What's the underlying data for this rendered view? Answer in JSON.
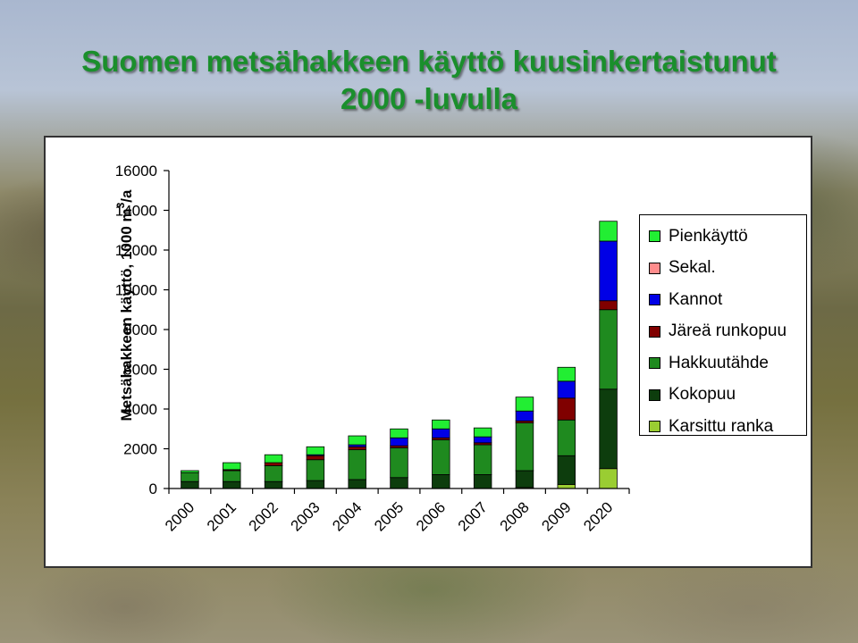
{
  "slide": {
    "title_line1": "Suomen metsähakkeen käyttö kuusinkertaistunut",
    "title_line2": "2000 -luvulla"
  },
  "chart_data": {
    "type": "bar",
    "stacked": true,
    "ylabel_main": "Metsähakkeen käyttö, 1000 m",
    "ylabel_sup": "3",
    "ylabel_suffix": "/a",
    "ylim": [
      0,
      16000
    ],
    "yticks": [
      0,
      2000,
      4000,
      6000,
      8000,
      10000,
      12000,
      14000,
      16000
    ],
    "categories": [
      "2000",
      "2001",
      "2002",
      "2003",
      "2004",
      "2005",
      "2006",
      "2007",
      "2008",
      "2009",
      "2020"
    ],
    "grid": false,
    "legend_placement": "right",
    "series": [
      {
        "name": "Karsittu ranka",
        "color": "#9acd32",
        "values": [
          0,
          0,
          0,
          0,
          0,
          0,
          0,
          0,
          50,
          200,
          1000
        ]
      },
      {
        "name": "Kokopuu",
        "color": "#0d3d0d",
        "values": [
          350,
          350,
          350,
          400,
          450,
          550,
          700,
          700,
          850,
          1450,
          4000
        ]
      },
      {
        "name": "Hakkuutähde",
        "color": "#1f8a1f",
        "values": [
          450,
          550,
          800,
          1050,
          1500,
          1500,
          1750,
          1500,
          2400,
          1800,
          4000
        ]
      },
      {
        "name": "Järeä runkopuu",
        "color": "#800000",
        "values": [
          0,
          50,
          150,
          200,
          150,
          100,
          100,
          100,
          100,
          1100,
          450
        ]
      },
      {
        "name": "Sekal.",
        "color": "#ff8c8c",
        "values": [
          0,
          0,
          0,
          0,
          0,
          0,
          0,
          0,
          0,
          0,
          0
        ]
      },
      {
        "name": "Kannot",
        "color": "#0000e6",
        "values": [
          0,
          0,
          0,
          50,
          100,
          400,
          450,
          300,
          500,
          850,
          3000
        ]
      },
      {
        "name": "Pienkäyttö",
        "color": "#22ee33",
        "values": [
          100,
          350,
          400,
          400,
          450,
          450,
          450,
          450,
          700,
          700,
          1000
        ]
      }
    ],
    "legend_order": [
      "Pienkäyttö",
      "Sekal.",
      "Kannot",
      "Järeä runkopuu",
      "Hakkuutähde",
      "Kokopuu",
      "Karsittu ranka"
    ]
  }
}
